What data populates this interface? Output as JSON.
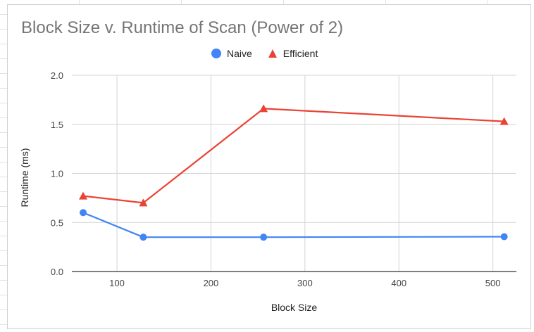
{
  "chart_data": {
    "type": "line",
    "title": "Block Size v. Runtime of Scan (Power of 2)",
    "xlabel": "Block Size",
    "ylabel": "Runtime (ms)",
    "xlim": [
      52,
      525
    ],
    "ylim": [
      0,
      2
    ],
    "x_ticks": [
      100,
      200,
      300,
      400,
      500
    ],
    "y_ticks": [
      0.0,
      0.5,
      1.0,
      1.5,
      2.0
    ],
    "x_tick_labels": [
      "100",
      "200",
      "300",
      "400",
      "500"
    ],
    "y_tick_labels": [
      "0.0",
      "0.5",
      "1.0",
      "1.5",
      "2.0"
    ],
    "grid": true,
    "legend_position": "top-center",
    "x": [
      64,
      128,
      256,
      512
    ],
    "series": [
      {
        "name": "Naive",
        "values": [
          0.6,
          0.35,
          0.35,
          0.355
        ],
        "color": "#4285f4",
        "marker": "circle"
      },
      {
        "name": "Efficient",
        "values": [
          0.77,
          0.7,
          1.66,
          1.53
        ],
        "color": "#ea4335",
        "marker": "triangle"
      }
    ]
  }
}
